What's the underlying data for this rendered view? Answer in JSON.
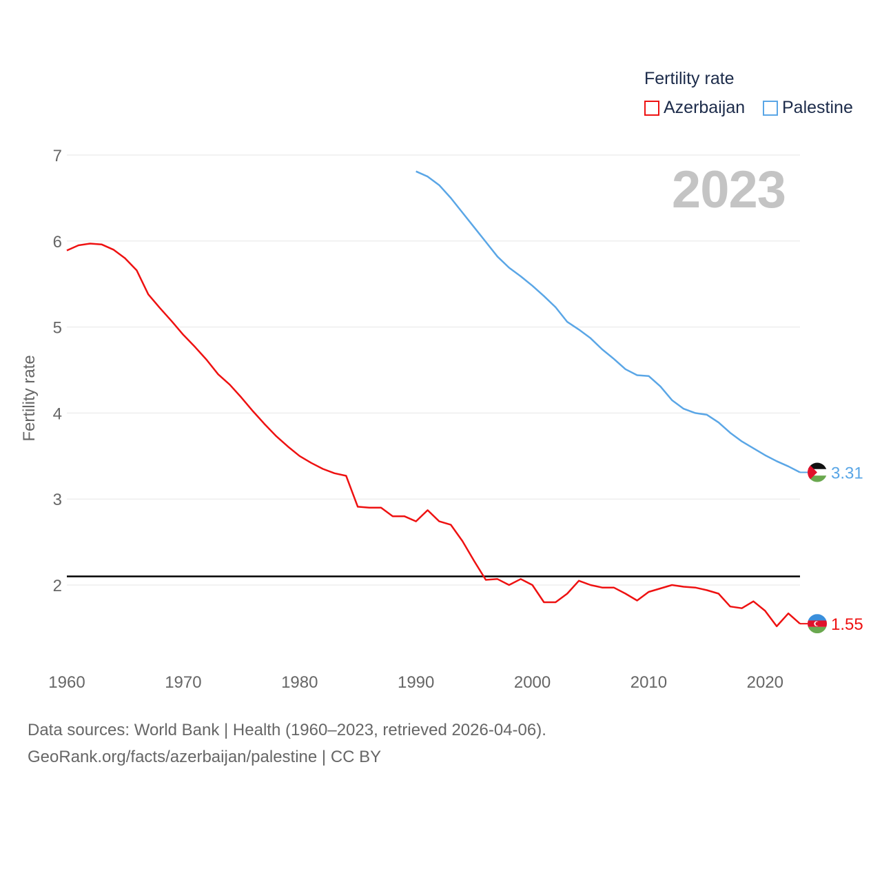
{
  "legend": {
    "title": "Fertility rate",
    "items": [
      {
        "label": "Azerbaijan",
        "color": "#ee1111"
      },
      {
        "label": "Palestine",
        "color": "#5aa6e6"
      }
    ]
  },
  "year_label": "2023",
  "footer": {
    "line1": "Data sources: World Bank | Health (1960–2023, retrieved 2026-04-06).",
    "line2": "GeoRank.org/facts/azerbaijan/palestine | CC BY"
  },
  "chart_data": {
    "type": "line",
    "title": "",
    "xlabel": "",
    "ylabel": "Fertility rate",
    "xlim": [
      1960,
      2023
    ],
    "ylim": [
      1.1,
      7.05
    ],
    "x_ticks": [
      1960,
      1970,
      1980,
      1990,
      2000,
      2010,
      2020
    ],
    "y_ticks": [
      2,
      3,
      4,
      5,
      6,
      7
    ],
    "reference_line": {
      "y": 2.1,
      "color": "#000000"
    },
    "series": [
      {
        "name": "Azerbaijan",
        "color": "#ee1111",
        "end_label": "1.55",
        "x": [
          1960,
          1961,
          1962,
          1963,
          1964,
          1965,
          1966,
          1967,
          1968,
          1969,
          1970,
          1971,
          1972,
          1973,
          1974,
          1975,
          1976,
          1977,
          1978,
          1979,
          1980,
          1981,
          1982,
          1983,
          1984,
          1985,
          1986,
          1987,
          1988,
          1989,
          1990,
          1991,
          1992,
          1993,
          1994,
          1995,
          1996,
          1997,
          1998,
          1999,
          2000,
          2001,
          2002,
          2003,
          2004,
          2005,
          2006,
          2007,
          2008,
          2009,
          2010,
          2011,
          2012,
          2013,
          2014,
          2015,
          2016,
          2017,
          2018,
          2019,
          2020,
          2021,
          2022,
          2023
        ],
        "values": [
          5.89,
          5.95,
          5.97,
          5.96,
          5.9,
          5.8,
          5.66,
          5.38,
          5.22,
          5.07,
          4.91,
          4.77,
          4.62,
          4.45,
          4.33,
          4.18,
          4.02,
          3.87,
          3.73,
          3.61,
          3.5,
          3.42,
          3.35,
          3.3,
          3.27,
          2.91,
          2.9,
          2.9,
          2.8,
          2.8,
          2.74,
          2.87,
          2.74,
          2.7,
          2.51,
          2.28,
          2.06,
          2.07,
          2.0,
          2.07,
          2.0,
          1.8,
          1.8,
          1.9,
          2.05,
          2.0,
          1.97,
          1.97,
          1.9,
          1.82,
          1.92,
          1.96,
          2.0,
          1.98,
          1.97,
          1.94,
          1.9,
          1.75,
          1.73,
          1.81,
          1.7,
          1.52,
          1.67,
          1.55
        ]
      },
      {
        "name": "Palestine",
        "color": "#5aa6e6",
        "end_label": "3.31",
        "x": [
          1990,
          1991,
          1992,
          1993,
          1994,
          1995,
          1996,
          1997,
          1998,
          1999,
          2000,
          2001,
          2002,
          2003,
          2004,
          2005,
          2006,
          2007,
          2008,
          2009,
          2010,
          2011,
          2012,
          2013,
          2014,
          2015,
          2016,
          2017,
          2018,
          2019,
          2020,
          2021,
          2022,
          2023
        ],
        "values": [
          6.81,
          6.75,
          6.65,
          6.5,
          6.33,
          6.16,
          5.99,
          5.82,
          5.69,
          5.59,
          5.48,
          5.36,
          5.23,
          5.06,
          4.97,
          4.87,
          4.74,
          4.63,
          4.51,
          4.44,
          4.43,
          4.31,
          4.15,
          4.05,
          4.0,
          3.98,
          3.89,
          3.77,
          3.67,
          3.59,
          3.51,
          3.44,
          3.38,
          3.31
        ]
      }
    ]
  }
}
